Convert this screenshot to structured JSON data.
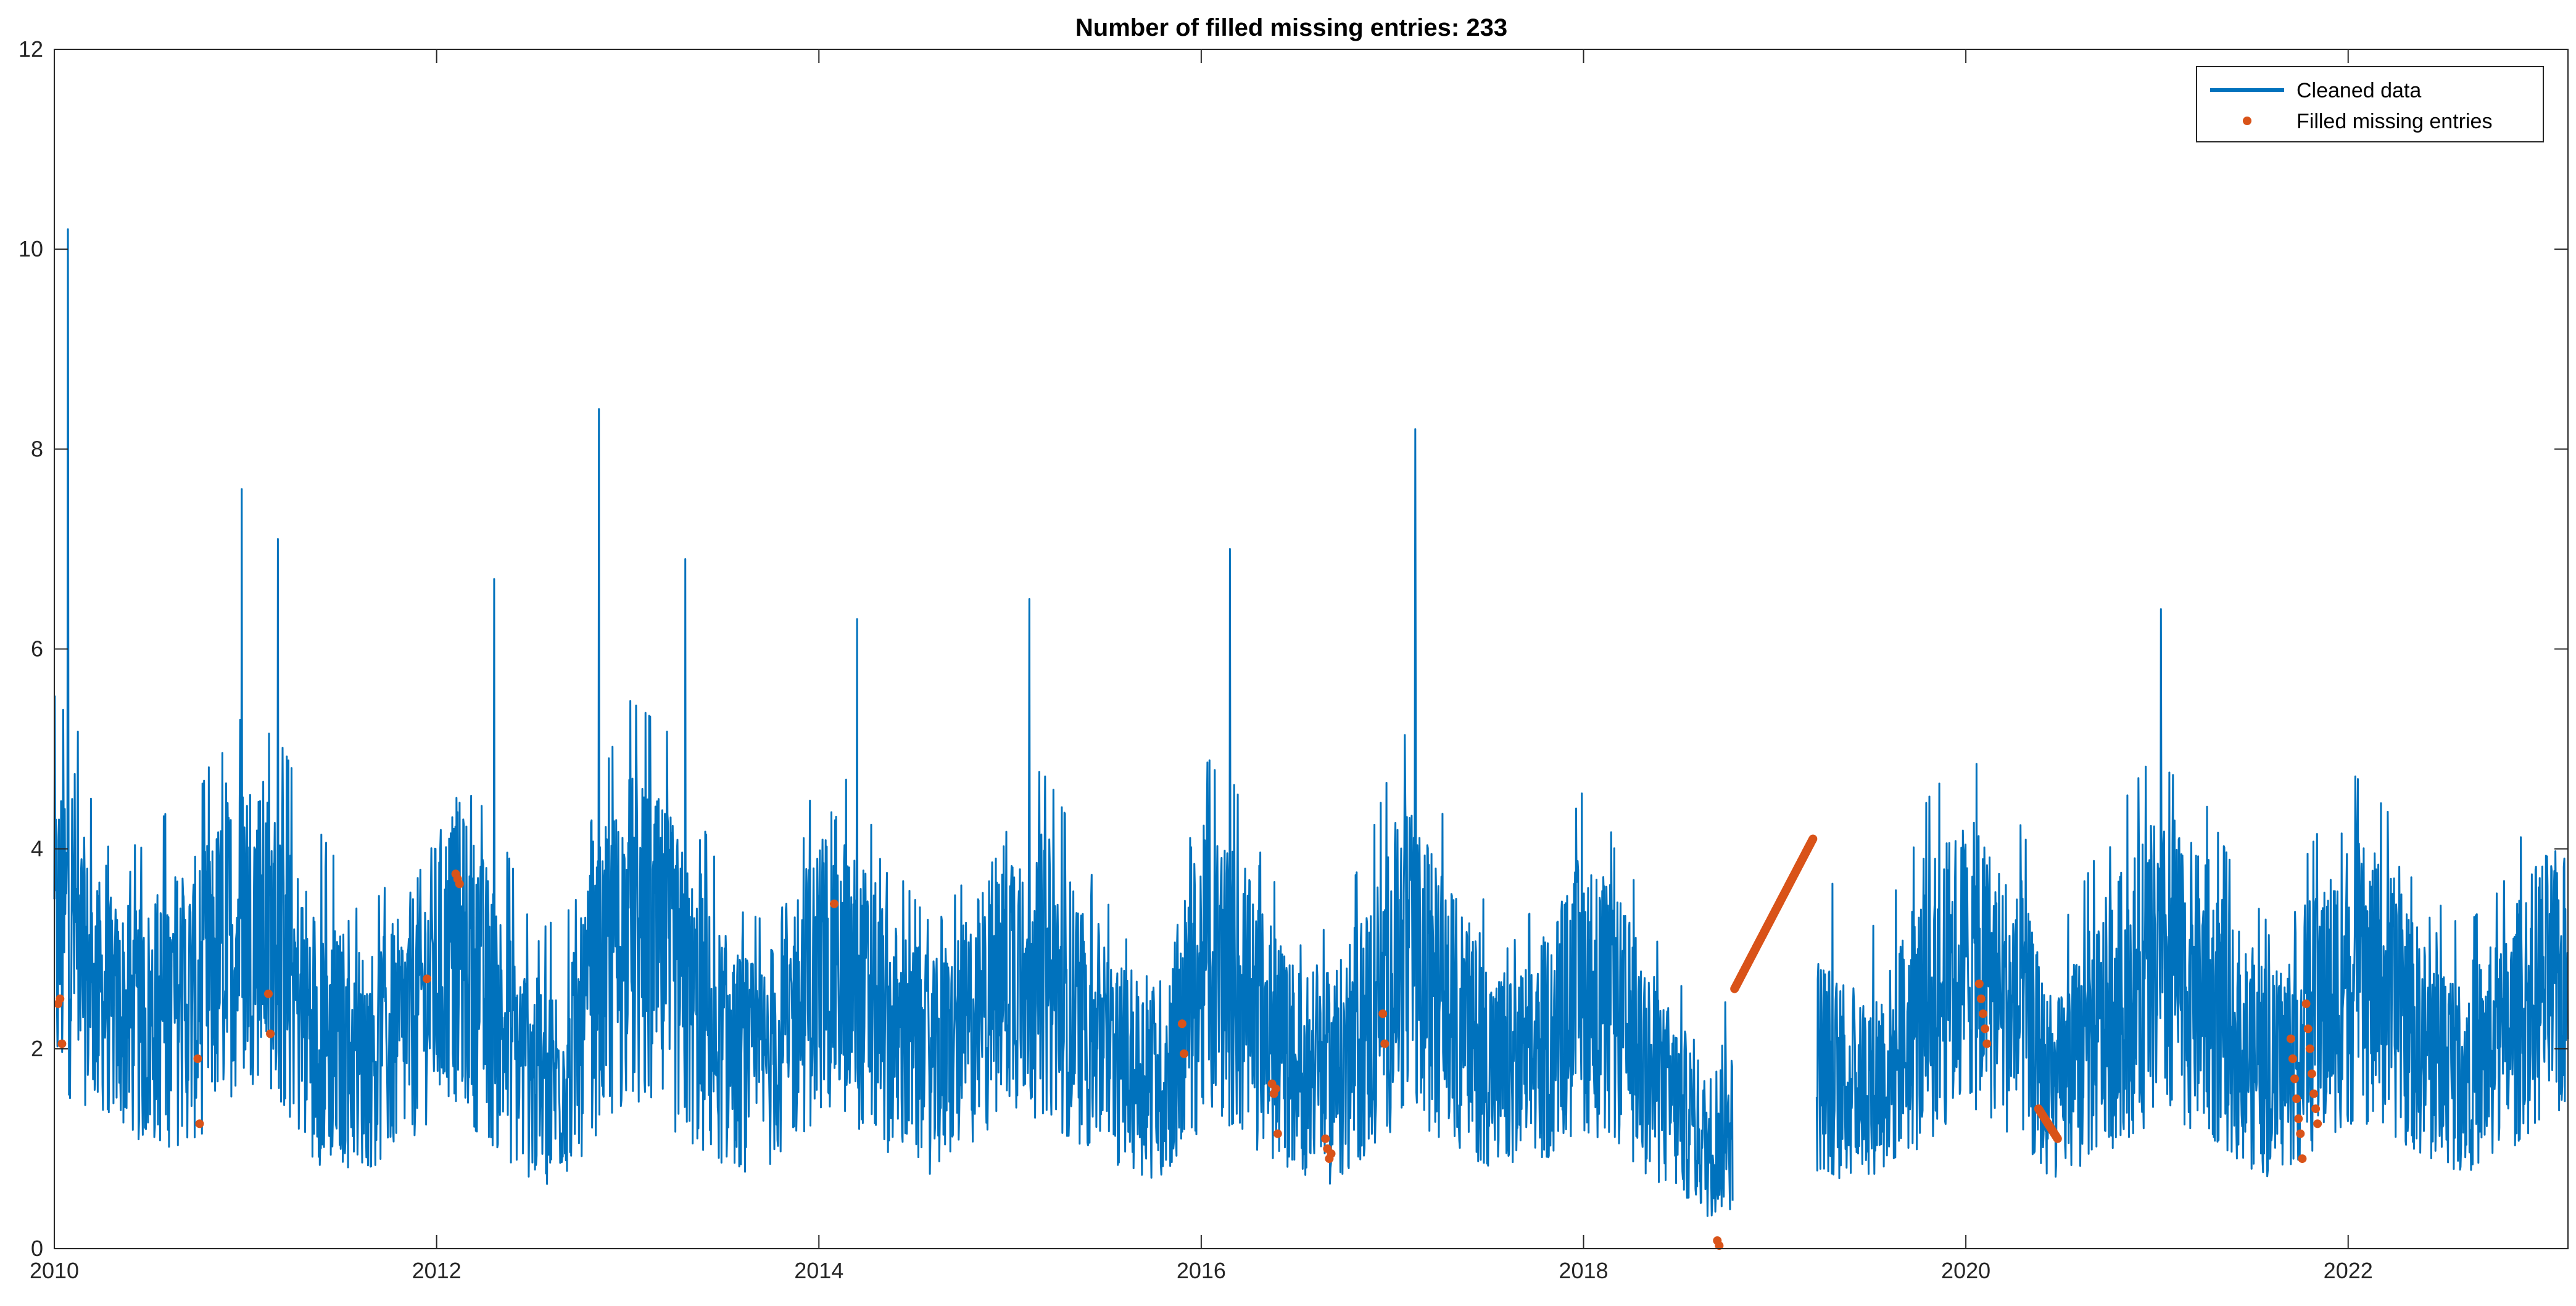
{
  "chart_data": {
    "type": "line",
    "title": "Number of filled missing entries: 233",
    "xlabel": "",
    "ylabel": "",
    "xlim": [
      2010.0,
      2023.15
    ],
    "ylim": [
      0,
      12
    ],
    "x_ticks": [
      2010,
      2012,
      2014,
      2016,
      2018,
      2020,
      2022
    ],
    "x_tick_labels": [
      "2010",
      "2012",
      "2014",
      "2016",
      "2018",
      "2020",
      "2022"
    ],
    "y_ticks": [
      0,
      2,
      4,
      6,
      8,
      10,
      12
    ],
    "y_tick_labels": [
      "0",
      "2",
      "4",
      "6",
      "8",
      "10",
      "12"
    ],
    "grid": false,
    "legend_position": "top-right",
    "series": [
      {
        "name": "Cleaned data",
        "style": "line",
        "color": "#0072BD",
        "description": "daily-resolution noisy seasonal series; values below are a representative envelope (x in decimal years)",
        "x": [
          2010.0,
          2010.05,
          2010.1,
          2010.15,
          2010.2,
          2010.3,
          2010.45,
          2010.6,
          2010.75,
          2010.9,
          2011.0,
          2011.1,
          2011.2,
          2011.35,
          2011.5,
          2011.65,
          2011.8,
          2011.95,
          2012.1,
          2012.25,
          2012.4,
          2012.55,
          2012.7,
          2012.85,
          2013.0,
          2013.2,
          2013.4,
          2013.55,
          2013.7,
          2013.9,
          2014.05,
          2014.2,
          2014.4,
          2014.6,
          2014.8,
          2015.0,
          2015.2,
          2015.4,
          2015.6,
          2015.8,
          2016.0,
          2016.1,
          2016.3,
          2016.5,
          2016.7,
          2016.9,
          2017.05,
          2017.2,
          2017.4,
          2017.6,
          2017.8,
          2018.0,
          2018.2,
          2018.4,
          2018.55,
          2018.65,
          2018.72,
          2019.25,
          2019.4,
          2019.6,
          2019.8,
          2020.0,
          2020.15,
          2020.3,
          2020.45,
          2020.6,
          2020.8,
          2021.0,
          2021.2,
          2021.4,
          2021.6,
          2021.8,
          2022.0,
          2022.2,
          2022.4,
          2022.6,
          2022.8,
          2023.0,
          2023.15
        ],
        "y_center": [
          3.0,
          3.2,
          3.3,
          2.8,
          2.6,
          2.4,
          2.2,
          2.4,
          2.5,
          3.0,
          3.3,
          3.2,
          2.8,
          2.2,
          2.0,
          1.9,
          2.1,
          2.6,
          3.0,
          2.5,
          2.0,
          1.6,
          1.8,
          2.6,
          3.1,
          2.8,
          2.2,
          1.9,
          1.8,
          2.4,
          2.9,
          2.6,
          2.1,
          1.8,
          2.2,
          2.9,
          2.7,
          2.2,
          1.8,
          1.7,
          2.7,
          2.8,
          2.2,
          1.8,
          1.7,
          2.3,
          2.9,
          2.6,
          2.1,
          1.7,
          2.0,
          2.6,
          2.2,
          1.6,
          1.3,
          1.0,
          1.2,
          1.8,
          1.6,
          1.8,
          2.4,
          2.9,
          2.6,
          2.3,
          1.5,
          1.9,
          2.4,
          2.8,
          2.6,
          2.1,
          1.7,
          2.2,
          2.7,
          2.5,
          2.0,
          1.8,
          2.0,
          2.6,
          2.6
        ],
        "y_low": [
          1.5,
          1.3,
          1.2,
          1.4,
          1.5,
          1.4,
          1.0,
          0.9,
          1.1,
          1.2,
          1.3,
          1.4,
          1.2,
          0.9,
          0.8,
          0.6,
          0.8,
          1.2,
          1.3,
          1.0,
          0.8,
          0.6,
          0.7,
          1.0,
          1.2,
          1.1,
          0.9,
          0.6,
          0.6,
          0.9,
          1.2,
          1.0,
          0.8,
          0.5,
          0.8,
          1.2,
          1.1,
          0.8,
          0.6,
          0.4,
          1.0,
          1.1,
          0.8,
          0.6,
          0.5,
          0.8,
          1.2,
          1.0,
          0.8,
          0.6,
          0.7,
          1.0,
          0.8,
          0.5,
          0.4,
          0.2,
          0.3,
          0.9,
          0.7,
          0.8,
          1.0,
          1.3,
          1.2,
          1.0,
          0.8,
          0.8,
          1.0,
          1.2,
          1.1,
          0.8,
          0.6,
          0.9,
          1.1,
          1.0,
          0.8,
          0.6,
          0.8,
          1.1,
          1.4
        ],
        "y_high": [
          5.5,
          6.0,
          5.5,
          4.8,
          4.6,
          4.2,
          4.0,
          4.4,
          4.7,
          5.0,
          5.5,
          5.2,
          5.0,
          4.3,
          3.8,
          3.4,
          3.8,
          4.6,
          5.2,
          4.6,
          3.8,
          3.2,
          3.4,
          4.6,
          5.5,
          5.2,
          4.2,
          3.4,
          3.3,
          4.2,
          5.0,
          4.5,
          3.8,
          3.2,
          3.8,
          5.0,
          4.7,
          3.9,
          3.1,
          3.0,
          4.8,
          5.0,
          4.0,
          3.2,
          3.2,
          4.2,
          5.2,
          4.6,
          3.8,
          3.0,
          3.6,
          4.6,
          4.0,
          3.0,
          2.5,
          2.0,
          2.4,
          4.0,
          3.0,
          3.4,
          4.5,
          5.0,
          4.6,
          4.2,
          3.0,
          3.6,
          4.4,
          5.0,
          4.7,
          3.8,
          3.2,
          4.0,
          4.8,
          4.4,
          3.6,
          3.2,
          3.6,
          4.6,
          4.8
        ],
        "peaks": [
          {
            "x": 2010.07,
            "y": 10.2
          },
          {
            "x": 2010.98,
            "y": 7.6
          },
          {
            "x": 2011.17,
            "y": 7.1
          },
          {
            "x": 2012.3,
            "y": 6.7
          },
          {
            "x": 2012.85,
            "y": 8.4
          },
          {
            "x": 2013.3,
            "y": 6.9
          },
          {
            "x": 2014.2,
            "y": 6.3
          },
          {
            "x": 2015.1,
            "y": 6.5
          },
          {
            "x": 2016.15,
            "y": 7.0
          },
          {
            "x": 2017.12,
            "y": 8.2
          },
          {
            "x": 2021.02,
            "y": 6.4
          }
        ],
        "gap": [
          2018.78,
          2019.22
        ]
      },
      {
        "name": "Filled missing entries",
        "style": "markers",
        "color": "#D95319",
        "points": [
          {
            "x": 2010.02,
            "y": 2.45
          },
          {
            "x": 2010.03,
            "y": 2.5
          },
          {
            "x": 2010.04,
            "y": 2.05
          },
          {
            "x": 2010.75,
            "y": 1.9
          },
          {
            "x": 2010.76,
            "y": 1.25
          },
          {
            "x": 2011.12,
            "y": 2.55
          },
          {
            "x": 2011.13,
            "y": 2.15
          },
          {
            "x": 2011.95,
            "y": 2.7
          },
          {
            "x": 2012.1,
            "y": 3.75
          },
          {
            "x": 2012.11,
            "y": 3.7
          },
          {
            "x": 2012.12,
            "y": 3.65
          },
          {
            "x": 2014.08,
            "y": 3.45
          },
          {
            "x": 2015.9,
            "y": 2.25
          },
          {
            "x": 2015.91,
            "y": 1.95
          },
          {
            "x": 2016.37,
            "y": 1.65
          },
          {
            "x": 2016.38,
            "y": 1.55
          },
          {
            "x": 2016.39,
            "y": 1.6
          },
          {
            "x": 2016.4,
            "y": 1.15
          },
          {
            "x": 2016.65,
            "y": 1.1
          },
          {
            "x": 2016.66,
            "y": 1.0
          },
          {
            "x": 2016.67,
            "y": 0.9
          },
          {
            "x": 2016.68,
            "y": 0.95
          },
          {
            "x": 2016.95,
            "y": 2.35
          },
          {
            "x": 2016.96,
            "y": 2.05
          },
          {
            "x": 2018.7,
            "y": 0.08
          },
          {
            "x": 2018.71,
            "y": 0.03
          },
          {
            "x": 2020.07,
            "y": 2.65
          },
          {
            "x": 2020.08,
            "y": 2.5
          },
          {
            "x": 2020.09,
            "y": 2.35
          },
          {
            "x": 2020.1,
            "y": 2.2
          },
          {
            "x": 2020.11,
            "y": 2.05
          },
          {
            "x": 2021.7,
            "y": 2.1
          },
          {
            "x": 2021.71,
            "y": 1.9
          },
          {
            "x": 2021.72,
            "y": 1.7
          },
          {
            "x": 2021.73,
            "y": 1.5
          },
          {
            "x": 2021.74,
            "y": 1.3
          },
          {
            "x": 2021.75,
            "y": 1.15
          },
          {
            "x": 2021.76,
            "y": 0.9
          },
          {
            "x": 2021.78,
            "y": 2.45
          },
          {
            "x": 2021.79,
            "y": 2.2
          },
          {
            "x": 2021.8,
            "y": 2.0
          },
          {
            "x": 2021.81,
            "y": 1.75
          },
          {
            "x": 2021.82,
            "y": 1.55
          },
          {
            "x": 2021.83,
            "y": 1.4
          },
          {
            "x": 2021.84,
            "y": 1.25
          }
        ],
        "runs": [
          {
            "x_start": 2018.79,
            "y_start": 2.6,
            "x_end": 2019.2,
            "y_end": 4.1
          },
          {
            "x_start": 2020.38,
            "y_start": 1.4,
            "x_end": 2020.48,
            "y_end": 1.1
          }
        ]
      }
    ]
  },
  "legend": {
    "items": [
      {
        "label": "Cleaned data",
        "color": "#0072BD",
        "marker": "line"
      },
      {
        "label": "Filled missing entries",
        "color": "#D95319",
        "marker": "dot"
      }
    ]
  },
  "colors": {
    "axis": "#262626",
    "background": "#ffffff",
    "line": "#0072BD",
    "marker": "#D95319"
  }
}
